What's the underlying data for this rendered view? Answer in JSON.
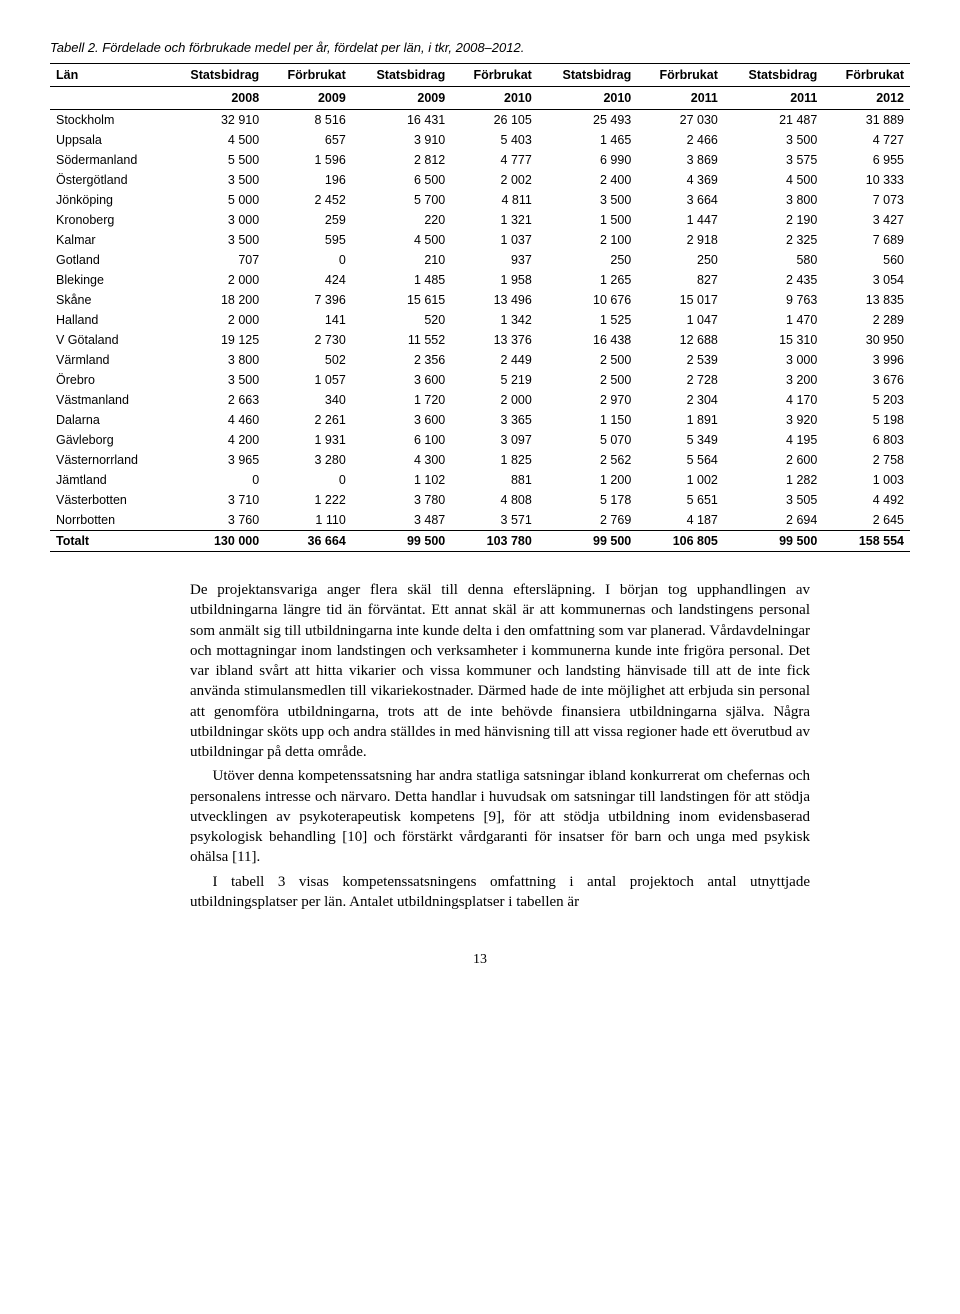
{
  "caption": "Tabell 2. Fördelade och förbrukade medel per år, fördelat per län, i tkr, 2008–2012.",
  "table": {
    "head_row1": [
      "Län",
      "Statsbidrag",
      "Förbrukat",
      "Statsbidrag",
      "Förbrukat",
      "Statsbidrag",
      "Förbrukat",
      "Statsbidrag",
      "Förbrukat"
    ],
    "head_row2": [
      "",
      "2008",
      "2009",
      "2009",
      "2010",
      "2010",
      "2011",
      "2011",
      "2012"
    ],
    "rows": [
      [
        "Stockholm",
        "32 910",
        "8 516",
        "16 431",
        "26 105",
        "25 493",
        "27 030",
        "21 487",
        "31 889"
      ],
      [
        "Uppsala",
        "4 500",
        "657",
        "3 910",
        "5 403",
        "1 465",
        "2 466",
        "3 500",
        "4 727"
      ],
      [
        "Södermanland",
        "5 500",
        "1 596",
        "2 812",
        "4 777",
        "6 990",
        "3 869",
        "3 575",
        "6 955"
      ],
      [
        "Östergötland",
        "3 500",
        "196",
        "6 500",
        "2 002",
        "2 400",
        "4 369",
        "4 500",
        "10 333"
      ],
      [
        "Jönköping",
        "5 000",
        "2 452",
        "5 700",
        "4 811",
        "3 500",
        "3 664",
        "3 800",
        "7 073"
      ],
      [
        "Kronoberg",
        "3 000",
        "259",
        "220",
        "1 321",
        "1 500",
        "1 447",
        "2 190",
        "3 427"
      ],
      [
        "Kalmar",
        "3 500",
        "595",
        "4 500",
        "1 037",
        "2 100",
        "2 918",
        "2 325",
        "7 689"
      ],
      [
        "Gotland",
        "707",
        "0",
        "210",
        "937",
        "250",
        "250",
        "580",
        "560"
      ],
      [
        "Blekinge",
        "2 000",
        "424",
        "1 485",
        "1 958",
        "1 265",
        "827",
        "2 435",
        "3 054"
      ],
      [
        "Skåne",
        "18 200",
        "7 396",
        "15 615",
        "13 496",
        "10 676",
        "15 017",
        "9 763",
        "13 835"
      ],
      [
        "Halland",
        "2 000",
        "141",
        "520",
        "1 342",
        "1 525",
        "1 047",
        "1 470",
        "2 289"
      ],
      [
        "V Götaland",
        "19 125",
        "2 730",
        "11 552",
        "13 376",
        "16 438",
        "12 688",
        "15 310",
        "30 950"
      ],
      [
        "Värmland",
        "3 800",
        "502",
        "2 356",
        "2 449",
        "2 500",
        "2 539",
        "3 000",
        "3 996"
      ],
      [
        "Örebro",
        "3 500",
        "1 057",
        "3 600",
        "5 219",
        "2 500",
        "2 728",
        "3 200",
        "3 676"
      ],
      [
        "Västmanland",
        "2 663",
        "340",
        "1 720",
        "2 000",
        "2 970",
        "2 304",
        "4 170",
        "5 203"
      ],
      [
        "Dalarna",
        "4 460",
        "2 261",
        "3 600",
        "3 365",
        "1 150",
        "1 891",
        "3 920",
        "5 198"
      ],
      [
        "Gävleborg",
        "4 200",
        "1 931",
        "6 100",
        "3 097",
        "5 070",
        "5 349",
        "4 195",
        "6 803"
      ],
      [
        "Västernorrland",
        "3 965",
        "3 280",
        "4 300",
        "1 825",
        "2 562",
        "5 564",
        "2 600",
        "2 758"
      ],
      [
        "Jämtland",
        "0",
        "0",
        "1 102",
        "881",
        "1 200",
        "1 002",
        "1 282",
        "1 003"
      ],
      [
        "Västerbotten",
        "3 710",
        "1 222",
        "3 780",
        "4 808",
        "5 178",
        "5 651",
        "3 505",
        "4 492"
      ],
      [
        "Norrbotten",
        "3 760",
        "1 110",
        "3 487",
        "3 571",
        "2 769",
        "4 187",
        "2 694",
        "2 645"
      ]
    ],
    "total": [
      "Totalt",
      "130 000",
      "36 664",
      "99 500",
      "103 780",
      "99 500",
      "106 805",
      "99 500",
      "158 554"
    ]
  },
  "paragraphs": [
    "De projektansvariga anger flera skäl till denna eftersläpning. I början tog upphandlingen av utbildningarna längre tid än förväntat. Ett annat skäl är att kommunernas och landstingens personal som anmält sig till utbildningarna inte kunde delta i den omfattning som var planerad. Vårdavdelningar och mottagningar inom landstingen och verksamheter i kommunerna kunde inte frigöra personal. Det var ibland svårt att hitta vikarier och vissa kommuner och landsting hänvisade till att de inte fick använda stimulansmedlen till vikariekostnader. Därmed hade de inte möjlighet att erbjuda sin personal att genomföra utbildningarna, trots att de inte behövde finansiera utbildningarna själva. Några utbildningar sköts upp och andra ställdes in med hänvisning till att vissa regioner hade ett överutbud av utbildningar på detta område.",
    "Utöver denna kompetenssatsning har andra statliga satsningar ibland konkurrerat om chefernas och personalens intresse och närvaro. Detta handlar i huvudsak om satsningar till landstingen för att stödja utvecklingen av psykoterapeutisk kompetens [9], för att stödja utbildning inom evidensbaserad psykologisk behandling [10] och förstärkt vårdgaranti för insatser för barn och unga med psykisk ohälsa [11].",
    "I tabell 3 visas kompetenssatsningens omfattning i antal projektoch antal utnyttjade utbildningsplatser per län. Antalet utbildningsplatser i tabellen är"
  ],
  "page_number": "13"
}
